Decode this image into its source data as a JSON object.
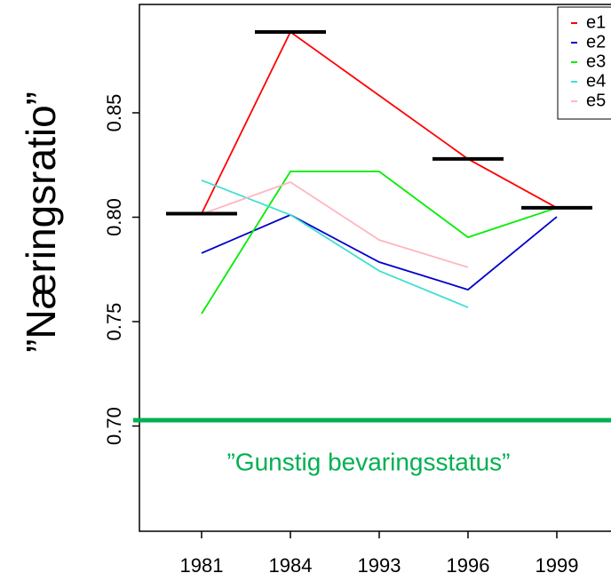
{
  "chart_data": {
    "type": "line",
    "ylabel": "”Næringsratio”",
    "categories": [
      "1981",
      "1984",
      "1993",
      "1996",
      "1999"
    ],
    "series": [
      {
        "name": "e1",
        "color": "#ff0000",
        "values": [
          0.8017,
          0.8887,
          0.8583,
          0.8279,
          0.8045
        ]
      },
      {
        "name": "e2",
        "color": "#0000cc",
        "values": [
          0.7828,
          0.8011,
          0.7785,
          0.7653,
          0.8002
        ]
      },
      {
        "name": "e3",
        "color": "#00ee00",
        "values": [
          0.7538,
          0.8219,
          0.8219,
          0.7904,
          0.8045
        ]
      },
      {
        "name": "e4",
        "color": "#40e0d0",
        "values": [
          0.8177,
          0.8011,
          0.7743,
          0.7568,
          null
        ]
      },
      {
        "name": "e5",
        "color": "#ffb6c1",
        "values": [
          0.8015,
          0.8168,
          0.7891,
          0.776,
          null
        ]
      }
    ],
    "observed": {
      "color": "#000000",
      "values": [
        0.8017,
        0.8887,
        null,
        0.8279,
        0.8045
      ]
    },
    "hline": {
      "value": 0.7028,
      "color": "#00b050",
      "label": "”Gunstig bevaringsstatus”"
    },
    "ylim": [
      0.6496,
      0.9019
    ],
    "yticks": [
      {
        "value": 0.7,
        "label": "0.70"
      },
      {
        "value": 0.75,
        "label": "0.75"
      },
      {
        "value": 0.8,
        "label": "0.80"
      },
      {
        "value": 0.85,
        "label": "0.85"
      }
    ],
    "legend": "top-right"
  }
}
